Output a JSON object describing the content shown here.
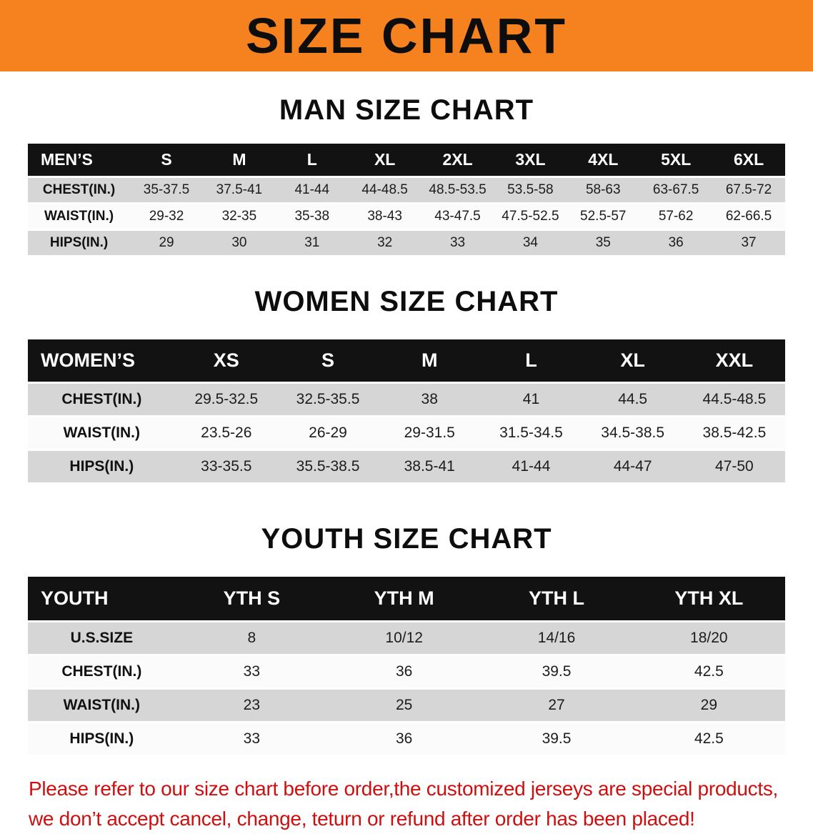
{
  "banner": {
    "title": "SIZE CHART",
    "bg_color": "#f5821f"
  },
  "tables": [
    {
      "id": "men",
      "heading": "MAN SIZE CHART",
      "header": [
        "MEN’S",
        "S",
        "M",
        "L",
        "XL",
        "2XL",
        "3XL",
        "4XL",
        "5XL",
        "6XL"
      ],
      "rows": [
        {
          "label": "CHEST(IN.)",
          "values": [
            "35-37.5",
            "37.5-41",
            "41-44",
            "44-48.5",
            "48.5-53.5",
            "53.5-58",
            "58-63",
            "63-67.5",
            "67.5-72"
          ]
        },
        {
          "label": "WAIST(IN.)",
          "values": [
            "29-32",
            "32-35",
            "35-38",
            "38-43",
            "43-47.5",
            "47.5-52.5",
            "52.5-57",
            "57-62",
            "62-66.5"
          ]
        },
        {
          "label": "HIPS(IN.)",
          "values": [
            "29",
            "30",
            "31",
            "32",
            "33",
            "34",
            "35",
            "36",
            "37"
          ]
        }
      ]
    },
    {
      "id": "women",
      "heading": "WOMEN SIZE CHART",
      "header": [
        "WOMEN’S",
        "XS",
        "S",
        "M",
        "L",
        "XL",
        "XXL"
      ],
      "rows": [
        {
          "label": "CHEST(IN.)",
          "values": [
            "29.5-32.5",
            "32.5-35.5",
            "38",
            "41",
            "44.5",
            "44.5-48.5"
          ]
        },
        {
          "label": "WAIST(IN.)",
          "values": [
            "23.5-26",
            "26-29",
            "29-31.5",
            "31.5-34.5",
            "34.5-38.5",
            "38.5-42.5"
          ]
        },
        {
          "label": "HIPS(IN.)",
          "values": [
            "33-35.5",
            "35.5-38.5",
            "38.5-41",
            "41-44",
            "44-47",
            "47-50"
          ]
        }
      ]
    },
    {
      "id": "youth",
      "heading": "YOUTH SIZE CHART",
      "header": [
        "YOUTH",
        "YTH S",
        "YTH M",
        "YTH L",
        "YTH XL"
      ],
      "rows": [
        {
          "label": "U.S.SIZE",
          "values": [
            "8",
            "10/12",
            "14/16",
            "18/20"
          ]
        },
        {
          "label": "CHEST(IN.)",
          "values": [
            "33",
            "36",
            "39.5",
            "42.5"
          ]
        },
        {
          "label": "WAIST(IN.)",
          "values": [
            "23",
            "25",
            "27",
            "29"
          ]
        },
        {
          "label": "HIPS(IN.)",
          "values": [
            "33",
            "36",
            "39.5",
            "42.5"
          ]
        }
      ]
    }
  ],
  "disclaimer": {
    "line1": "Please refer to our size chart before order,the customized jerseys are special products,",
    "line2": "we don’t accept cancel, change, teturn or refund after order has been placed!",
    "text_color": "#cf0f0f"
  }
}
